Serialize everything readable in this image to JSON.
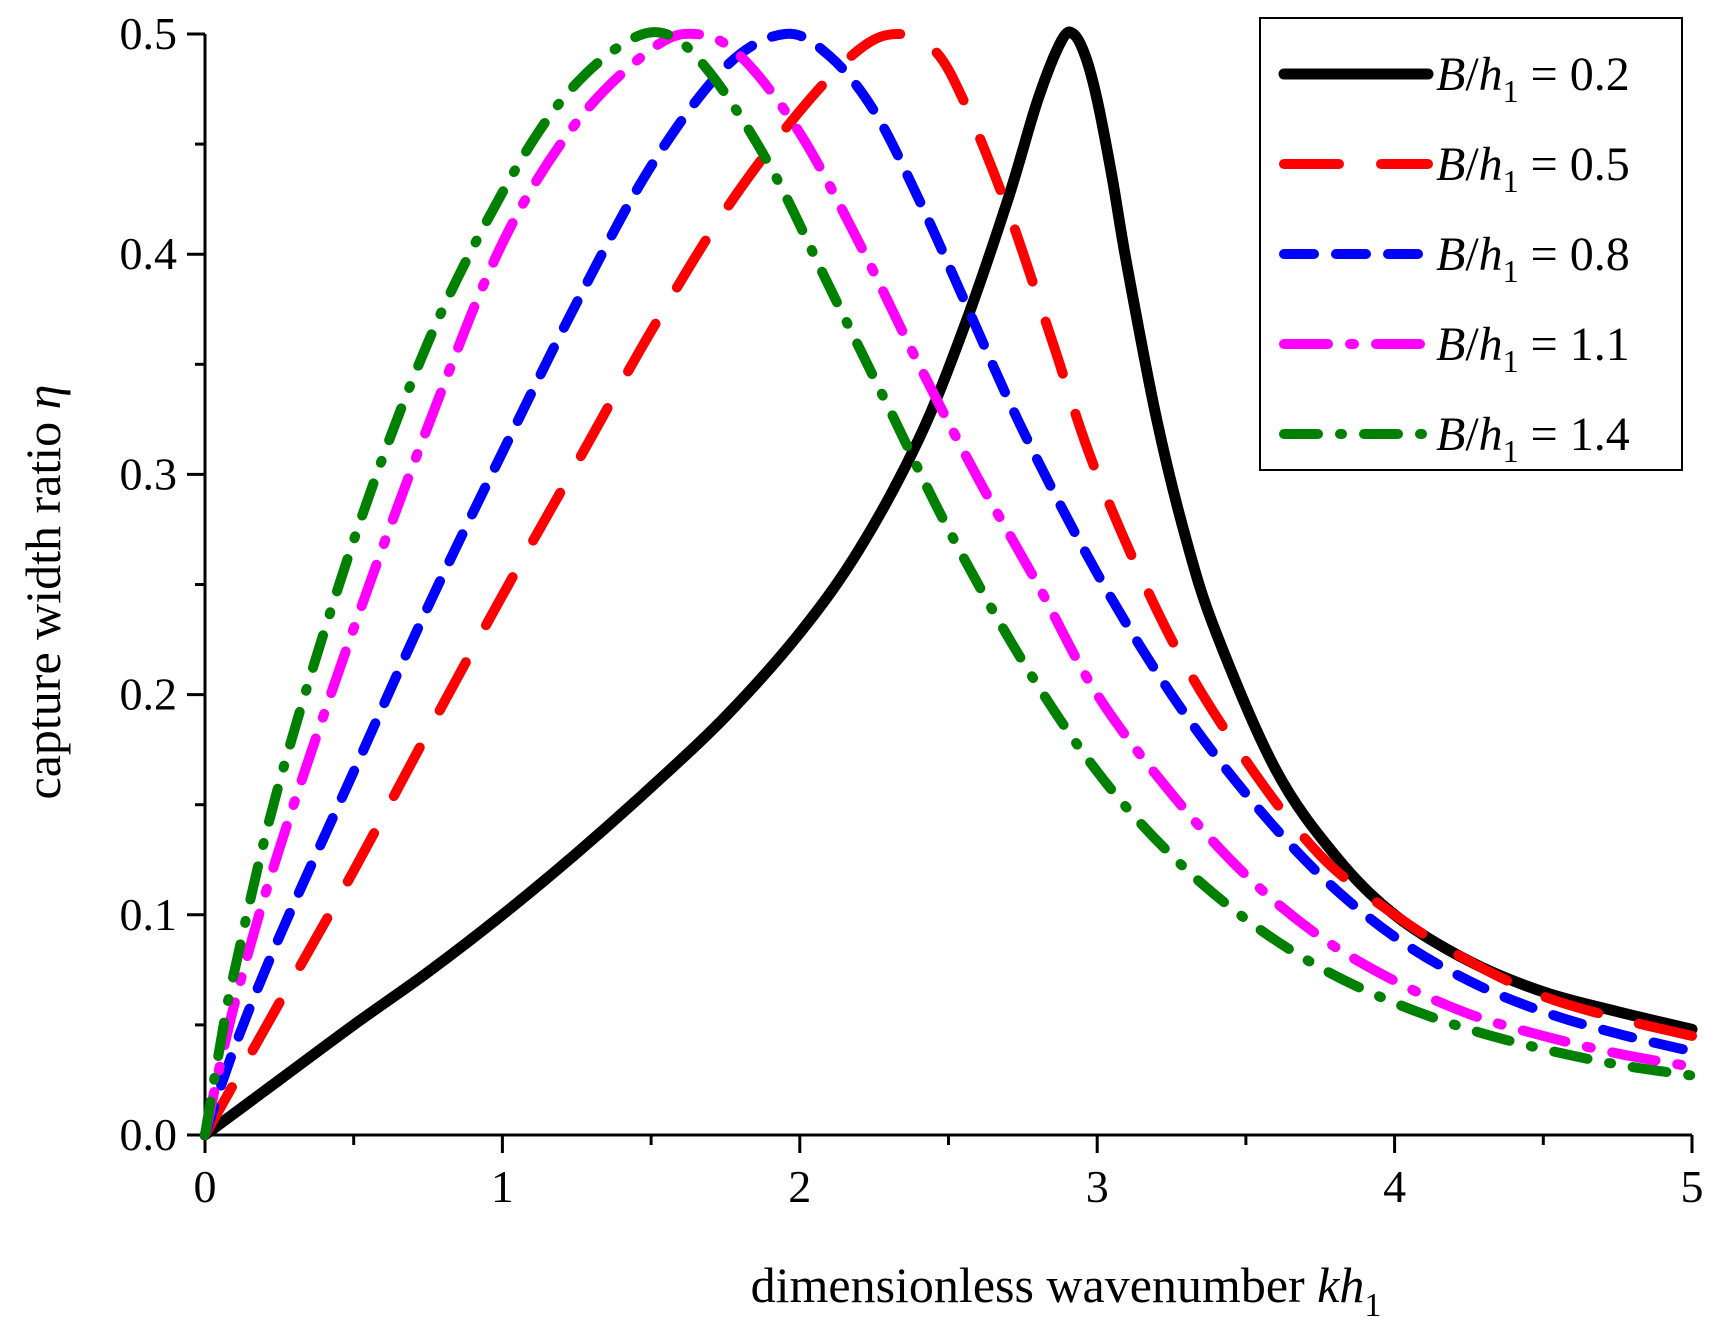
{
  "chart_data": {
    "type": "line",
    "xlabel": "dimensionless wavenumber kh1",
    "xlabel_parts": {
      "text": "dimensionless wavenumber ",
      "italic": "kh",
      "sub": "1"
    },
    "ylabel": "capture width ratio η",
    "ylabel_parts": {
      "text": "capture width ratio ",
      "italic": "η"
    },
    "xlim": [
      0,
      5
    ],
    "ylim": [
      0,
      0.5
    ],
    "x_ticks": [
      0,
      1,
      2,
      3,
      4,
      5
    ],
    "x_tick_labels": [
      "0",
      "1",
      "2",
      "3",
      "4",
      "5"
    ],
    "y_ticks": [
      0,
      0.1,
      0.2,
      0.3,
      0.4,
      0.5
    ],
    "y_tick_labels": [
      "0.0",
      "0.1",
      "0.2",
      "0.3",
      "0.4",
      "0.5"
    ],
    "grid": false,
    "legend_position": "top-right",
    "series": [
      {
        "name": "B/h1 = 0.2",
        "label_parts": {
          "italic_a": "B",
          "slash": "/",
          "italic_b": "h",
          "sub": "1",
          "rest": " = 0.2"
        },
        "color": "#000000",
        "style": "solid",
        "points": [
          [
            0,
            0
          ],
          [
            0.25,
            0.025
          ],
          [
            0.5,
            0.05
          ],
          [
            0.75,
            0.074
          ],
          [
            1,
            0.1
          ],
          [
            1.25,
            0.128
          ],
          [
            1.5,
            0.158
          ],
          [
            1.75,
            0.19
          ],
          [
            2,
            0.228
          ],
          [
            2.2,
            0.266
          ],
          [
            2.4,
            0.316
          ],
          [
            2.55,
            0.366
          ],
          [
            2.7,
            0.425
          ],
          [
            2.8,
            0.47
          ],
          [
            2.88,
            0.497
          ],
          [
            2.92,
            0.5
          ],
          [
            2.96,
            0.49
          ],
          [
            3.0,
            0.47
          ],
          [
            3.05,
            0.435
          ],
          [
            3.1,
            0.395
          ],
          [
            3.2,
            0.325
          ],
          [
            3.3,
            0.27
          ],
          [
            3.4,
            0.228
          ],
          [
            3.6,
            0.166
          ],
          [
            3.8,
            0.127
          ],
          [
            4.0,
            0.1
          ],
          [
            4.25,
            0.079
          ],
          [
            4.5,
            0.065
          ],
          [
            4.75,
            0.056
          ],
          [
            5.0,
            0.048
          ]
        ]
      },
      {
        "name": "B/h1 = 0.5",
        "label_parts": {
          "italic_a": "B",
          "slash": "/",
          "italic_b": "h",
          "sub": "1",
          "rest": " = 0.5"
        },
        "color": "#ff0000",
        "style": "long-dash",
        "points": [
          [
            0,
            0
          ],
          [
            0.25,
            0.06
          ],
          [
            0.5,
            0.12
          ],
          [
            0.75,
            0.183
          ],
          [
            1,
            0.245
          ],
          [
            1.25,
            0.305
          ],
          [
            1.5,
            0.365
          ],
          [
            1.75,
            0.42
          ],
          [
            2.0,
            0.465
          ],
          [
            2.2,
            0.493
          ],
          [
            2.33,
            0.5
          ],
          [
            2.45,
            0.493
          ],
          [
            2.55,
            0.47
          ],
          [
            2.7,
            0.42
          ],
          [
            2.85,
            0.36
          ],
          [
            3.0,
            0.3
          ],
          [
            3.25,
            0.225
          ],
          [
            3.5,
            0.17
          ],
          [
            3.75,
            0.127
          ],
          [
            4.0,
            0.1
          ],
          [
            4.25,
            0.079
          ],
          [
            4.5,
            0.063
          ],
          [
            4.75,
            0.053
          ],
          [
            5.0,
            0.045
          ]
        ]
      },
      {
        "name": "B/h1 = 0.8",
        "label_parts": {
          "italic_a": "B",
          "slash": "/",
          "italic_b": "h",
          "sub": "1",
          "rest": " = 0.8"
        },
        "color": "#0000ff",
        "style": "dash",
        "points": [
          [
            0,
            0
          ],
          [
            0.1,
            0.04
          ],
          [
            0.25,
            0.09
          ],
          [
            0.5,
            0.165
          ],
          [
            0.75,
            0.24
          ],
          [
            1,
            0.31
          ],
          [
            1.25,
            0.378
          ],
          [
            1.5,
            0.44
          ],
          [
            1.75,
            0.485
          ],
          [
            1.95,
            0.5
          ],
          [
            2.1,
            0.49
          ],
          [
            2.25,
            0.465
          ],
          [
            2.4,
            0.425
          ],
          [
            2.55,
            0.38
          ],
          [
            2.75,
            0.32
          ],
          [
            3.0,
            0.255
          ],
          [
            3.25,
            0.2
          ],
          [
            3.5,
            0.155
          ],
          [
            3.75,
            0.118
          ],
          [
            4.0,
            0.09
          ],
          [
            4.25,
            0.07
          ],
          [
            4.5,
            0.056
          ],
          [
            4.75,
            0.046
          ],
          [
            5.0,
            0.038
          ]
        ]
      },
      {
        "name": "B/h1 = 1.1",
        "label_parts": {
          "italic_a": "B",
          "slash": "/",
          "italic_b": "h",
          "sub": "1",
          "rest": " = 1.1"
        },
        "color": "#ff00ff",
        "style": "dash-dot",
        "points": [
          [
            0,
            0
          ],
          [
            0.1,
            0.06
          ],
          [
            0.25,
            0.13
          ],
          [
            0.5,
            0.23
          ],
          [
            0.75,
            0.322
          ],
          [
            1,
            0.405
          ],
          [
            1.25,
            0.46
          ],
          [
            1.5,
            0.493
          ],
          [
            1.65,
            0.5
          ],
          [
            1.8,
            0.49
          ],
          [
            2.0,
            0.455
          ],
          [
            2.2,
            0.405
          ],
          [
            2.4,
            0.35
          ],
          [
            2.6,
            0.298
          ],
          [
            2.8,
            0.25
          ],
          [
            3.0,
            0.2
          ],
          [
            3.25,
            0.155
          ],
          [
            3.5,
            0.118
          ],
          [
            3.75,
            0.09
          ],
          [
            4.0,
            0.07
          ],
          [
            4.25,
            0.055
          ],
          [
            4.5,
            0.045
          ],
          [
            4.75,
            0.037
          ],
          [
            5.0,
            0.031
          ]
        ]
      },
      {
        "name": "B/h1 = 1.4",
        "label_parts": {
          "italic_a": "B",
          "slash": "/",
          "italic_b": "h",
          "sub": "1",
          "rest": " = 1.4"
        },
        "color": "#008000",
        "style": "dash-dot",
        "points": [
          [
            0,
            0
          ],
          [
            0.05,
            0.04
          ],
          [
            0.1,
            0.075
          ],
          [
            0.25,
            0.16
          ],
          [
            0.5,
            0.27
          ],
          [
            0.75,
            0.36
          ],
          [
            1,
            0.428
          ],
          [
            1.2,
            0.47
          ],
          [
            1.4,
            0.495
          ],
          [
            1.55,
            0.5
          ],
          [
            1.7,
            0.482
          ],
          [
            1.9,
            0.44
          ],
          [
            2.1,
            0.385
          ],
          [
            2.3,
            0.33
          ],
          [
            2.5,
            0.275
          ],
          [
            2.75,
            0.215
          ],
          [
            3.0,
            0.165
          ],
          [
            3.25,
            0.127
          ],
          [
            3.5,
            0.098
          ],
          [
            3.75,
            0.076
          ],
          [
            4.0,
            0.06
          ],
          [
            4.25,
            0.048
          ],
          [
            4.5,
            0.039
          ],
          [
            4.75,
            0.032
          ],
          [
            5.0,
            0.027
          ]
        ]
      }
    ]
  }
}
